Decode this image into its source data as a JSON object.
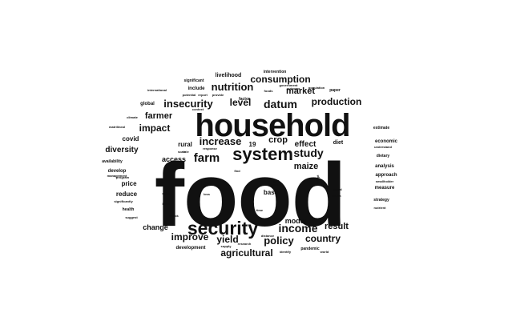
{
  "word_cloud": {
    "colors": {
      "words": "#111111",
      "background": "#ffffff"
    },
    "words": [
      {
        "text": "food",
        "weight": 100
      },
      {
        "text": "household",
        "weight": 42
      },
      {
        "text": "security",
        "weight": 24
      },
      {
        "text": "system",
        "weight": 23
      },
      {
        "text": "farm",
        "weight": 16
      },
      {
        "text": "income",
        "weight": 15
      },
      {
        "text": "insecurity",
        "weight": 14
      },
      {
        "text": "study",
        "weight": 14
      },
      {
        "text": "datum",
        "weight": 14
      },
      {
        "text": "increase",
        "weight": 13
      },
      {
        "text": "nutrition",
        "weight": 13
      },
      {
        "text": "impact",
        "weight": 13
      },
      {
        "text": "policy",
        "weight": 13
      },
      {
        "text": "production",
        "weight": 12
      },
      {
        "text": "consumption",
        "weight": 12
      },
      {
        "text": "level",
        "weight": 12
      },
      {
        "text": "improve",
        "weight": 12
      },
      {
        "text": "yield",
        "weight": 12
      },
      {
        "text": "country",
        "weight": 12
      },
      {
        "text": "agricultural",
        "weight": 12
      },
      {
        "text": "crop",
        "weight": 11
      },
      {
        "text": "farmer",
        "weight": 11
      },
      {
        "text": "market",
        "weight": 11
      },
      {
        "text": "maize",
        "weight": 11
      },
      {
        "text": "result",
        "weight": 11
      },
      {
        "text": "effect",
        "weight": 10
      },
      {
        "text": "diversity",
        "weight": 10
      },
      {
        "text": "change",
        "weight": 9
      },
      {
        "text": "access",
        "weight": 9
      },
      {
        "text": "model",
        "weight": 9
      },
      {
        "text": "price",
        "weight": 8
      },
      {
        "text": "rural",
        "weight": 8
      },
      {
        "text": "covid",
        "weight": 8
      },
      {
        "text": "reduce",
        "weight": 8
      },
      {
        "text": "base",
        "weight": 8
      },
      {
        "text": "low",
        "weight": 8
      },
      {
        "text": "19",
        "weight": 8
      },
      {
        "text": "diet",
        "weight": 7
      },
      {
        "text": "livelihood",
        "weight": 7
      },
      {
        "text": "include",
        "weight": 7
      },
      {
        "text": "significant",
        "weight": 6
      },
      {
        "text": "global",
        "weight": 6
      },
      {
        "text": "economic",
        "weight": 6
      },
      {
        "text": "estimate",
        "weight": 6
      },
      {
        "text": "analysis",
        "weight": 6
      },
      {
        "text": "approach",
        "weight": 6
      },
      {
        "text": "dietary",
        "weight": 6
      },
      {
        "text": "measure",
        "weight": 6
      },
      {
        "text": "strategy",
        "weight": 6
      },
      {
        "text": "develop",
        "weight": 6
      },
      {
        "text": "availability",
        "weight": 6
      },
      {
        "text": "health",
        "weight": 6
      },
      {
        "text": "development",
        "weight": 6
      },
      {
        "text": "pandemic",
        "weight": 6
      },
      {
        "text": "intervention",
        "weight": 5
      },
      {
        "text": "paper",
        "weight": 5
      },
      {
        "text": "factor",
        "weight": 5
      },
      {
        "text": "provide",
        "weight": 5
      },
      {
        "text": "international",
        "weight": 5
      },
      {
        "text": "climate",
        "weight": 4
      },
      {
        "text": "potential",
        "weight": 4
      },
      {
        "text": "context",
        "weight": 4
      },
      {
        "text": "role",
        "weight": 4
      },
      {
        "text": "scale",
        "weight": 4
      },
      {
        "text": "response",
        "weight": 4
      },
      {
        "text": "program",
        "weight": 4
      },
      {
        "text": "management",
        "weight": 4
      },
      {
        "text": "significantly",
        "weight": 4
      },
      {
        "text": "suggest",
        "weight": 4
      },
      {
        "text": "shock",
        "weight": 4
      },
      {
        "text": "child",
        "weight": 4
      },
      {
        "text": "local",
        "weight": 4
      },
      {
        "text": "loss",
        "weight": 4
      },
      {
        "text": "social",
        "weight": 4
      },
      {
        "text": "time",
        "weight": 4
      },
      {
        "text": "identify",
        "weight": 4
      },
      {
        "text": "research",
        "weight": 4
      },
      {
        "text": "supply",
        "weight": 4
      },
      {
        "text": "smallholder",
        "weight": 4
      },
      {
        "text": "understand",
        "weight": 4
      },
      {
        "text": "nutrient",
        "weight": 4
      },
      {
        "text": "population",
        "weight": 4
      },
      {
        "text": "urban",
        "weight": 4
      },
      {
        "text": "world",
        "weight": 4
      },
      {
        "text": "poor",
        "weight": 4
      },
      {
        "text": "gap",
        "weight": 4
      },
      {
        "text": "find",
        "weight": 4
      },
      {
        "text": "outcome",
        "weight": 4
      },
      {
        "text": "government",
        "weight": 4
      },
      {
        "text": "foods",
        "weight": 4
      },
      {
        "text": "report",
        "weight": 4
      },
      {
        "text": "matrilineal",
        "weight": 4
      },
      {
        "text": "distance",
        "weight": 4
      },
      {
        "text": "adopt",
        "weight": 4
      }
    ]
  }
}
